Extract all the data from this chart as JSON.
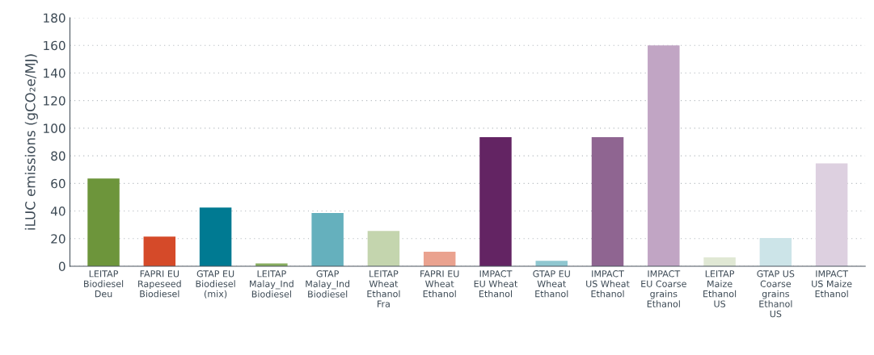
{
  "chart_data": {
    "type": "bar",
    "ylabel": "iLUC emissions (gCO₂e/MJ)",
    "categories": [
      "LEITAP\nBiodiesel\nDeu",
      "FAPRI EU\nRapeseed\nBiodiesel",
      "GTAP EU\nBiodiesel\n(mix)",
      "LEITAP\nMalay_Ind\nBiodiesel",
      "GTAP\nMalay_Ind\nBiodiesel",
      "LEITAP\nWheat\nEthanol\nFra",
      "FAPRI EU\nWheat\nEthanol",
      "IMPACT\nEU Wheat\nEthanol",
      "GTAP EU\nWheat\nEthanol",
      "IMPACT\nUS Wheat\nEthanol",
      "IMPACT\nEU Coarse\ngrains\nEthanol",
      "LEITAP\nMaize\nEthanol\nUS",
      "GTAP US\nCoarse\ngrains\nEthanol\nUS",
      "IMPACT\nUS Maize\nEthanol"
    ],
    "values": [
      63.5,
      21.5,
      42.5,
      2,
      38.5,
      25.5,
      10.5,
      93.5,
      4,
      93.5,
      160,
      6.5,
      20.5,
      74.5
    ],
    "colors": [
      "#6d953b",
      "#d54a29",
      "#007a92",
      "#87ad5f",
      "#65b0bd",
      "#c4d5ae",
      "#eaa28f",
      "#632463",
      "#8fc7d0",
      "#8f6591",
      "#c1a5c4",
      "#e0e8d4",
      "#cce4e8",
      "#ddd0e0"
    ],
    "ylim": [
      0,
      180
    ],
    "yticks": [
      0,
      20,
      40,
      60,
      80,
      100,
      120,
      140,
      160,
      180
    ],
    "grid": "y"
  }
}
